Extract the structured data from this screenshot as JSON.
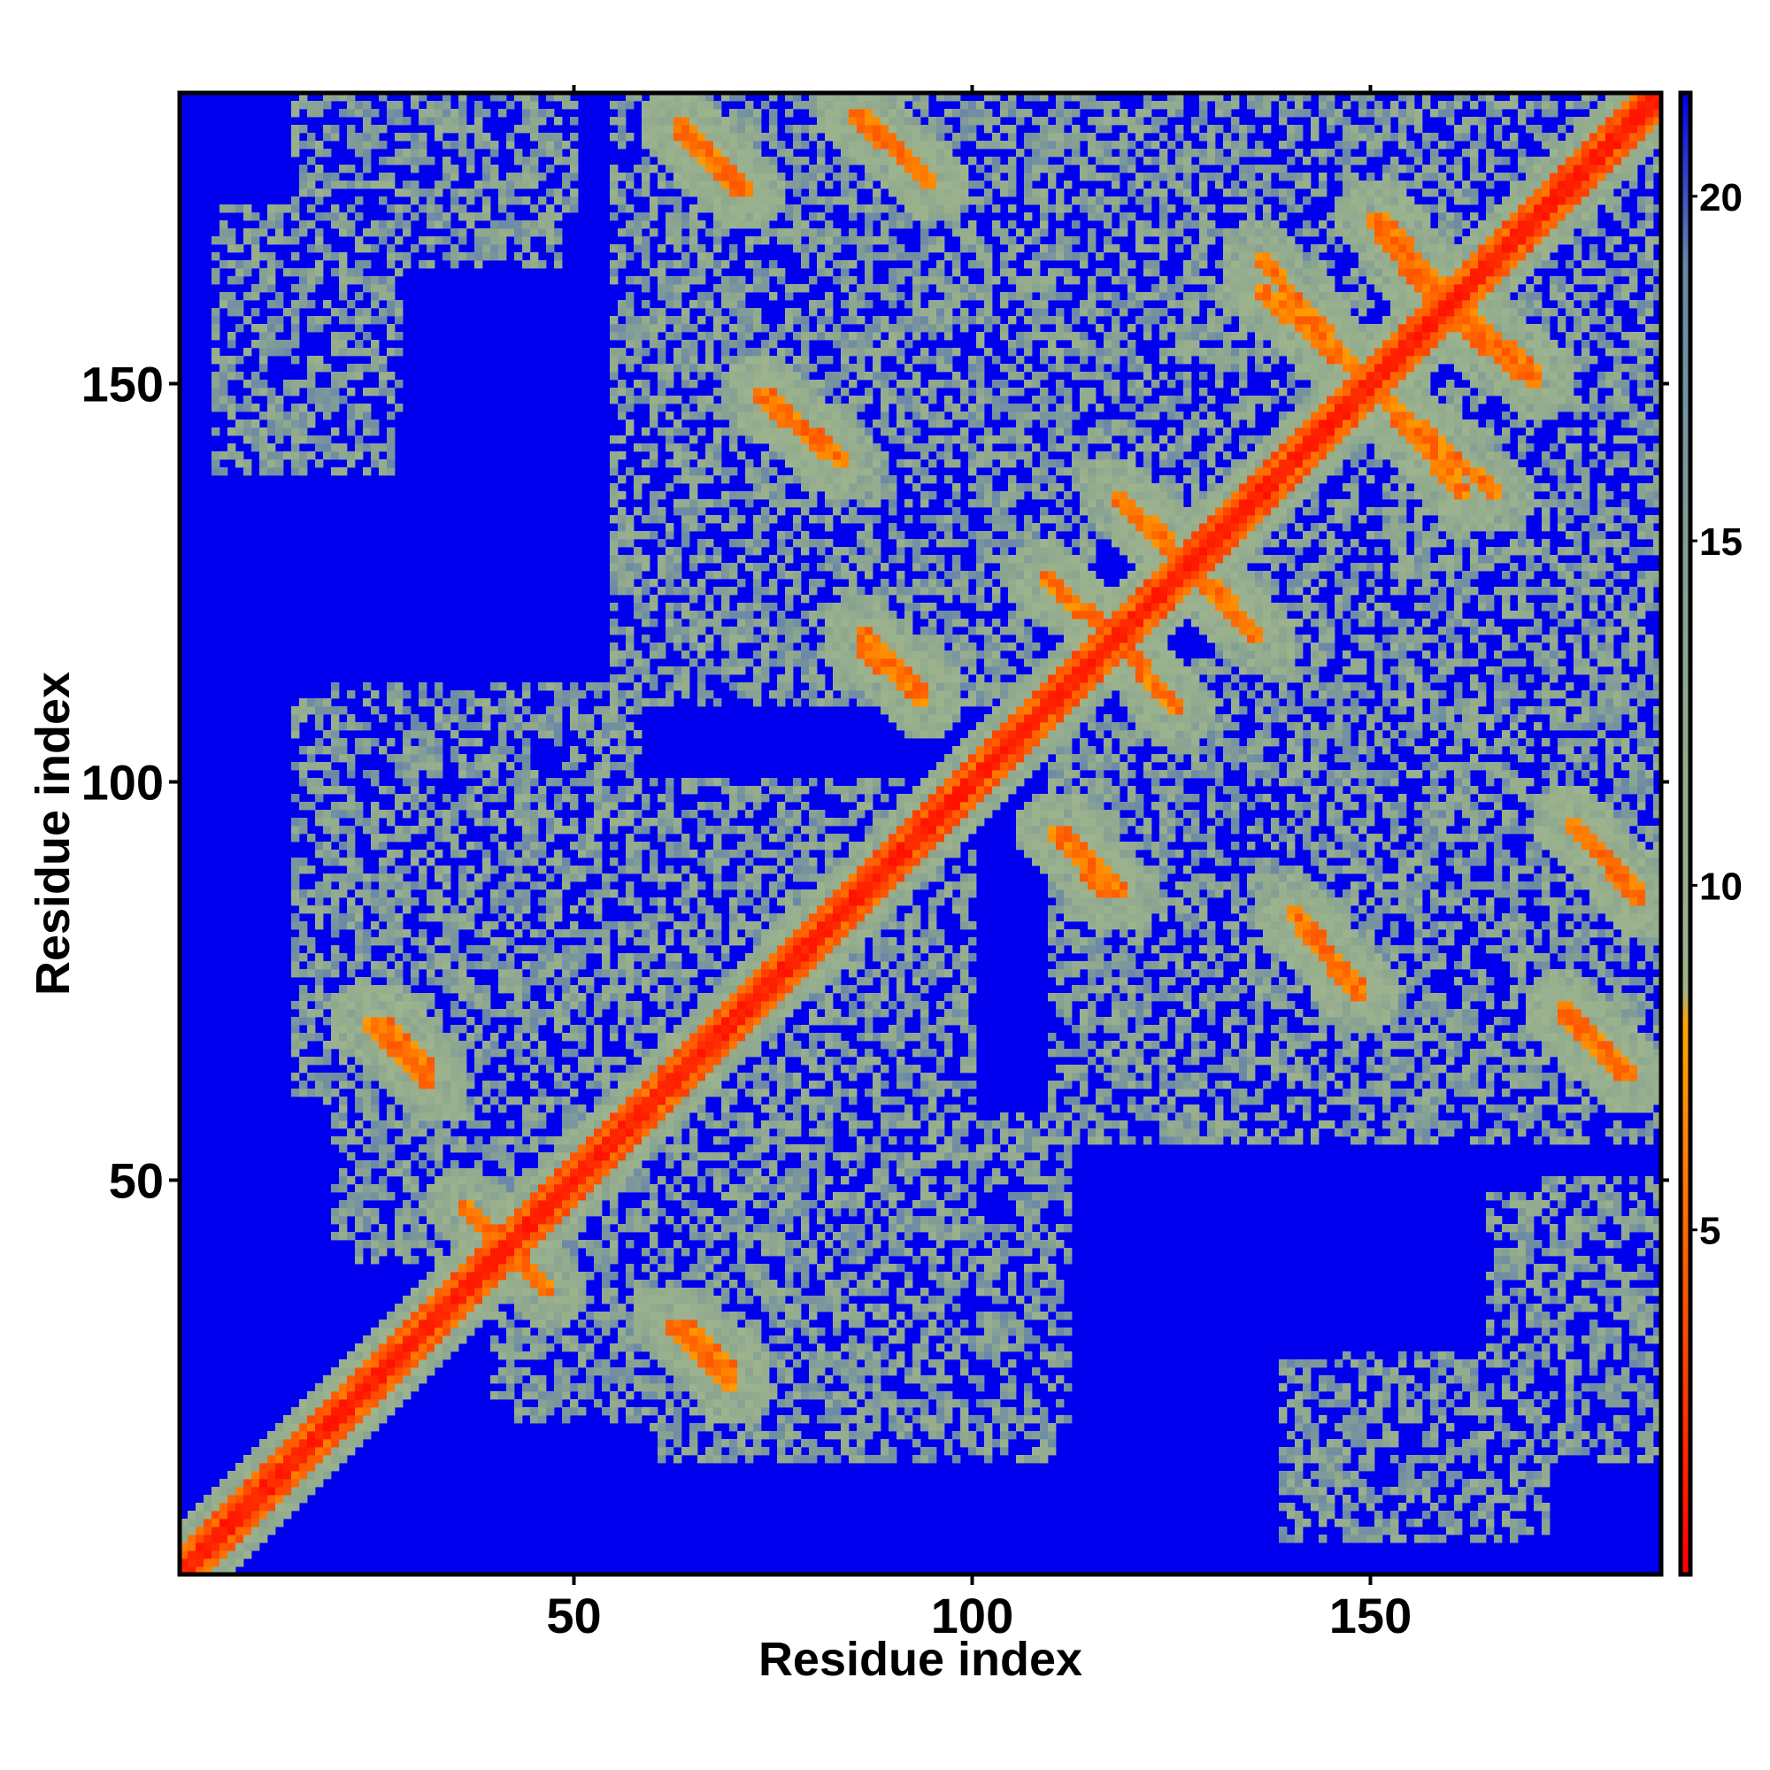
{
  "chart_data": {
    "type": "heatmap",
    "title": "",
    "xlabel": "Residue index",
    "ylabel": "Residue index",
    "n_residues": 186,
    "xlim": [
      1,
      186
    ],
    "ylim": [
      1,
      186
    ],
    "x_ticks": [
      50,
      100,
      150
    ],
    "y_ticks": [
      50,
      100,
      150
    ],
    "colorbar": {
      "ticks": [
        5,
        10,
        15,
        20
      ],
      "range": [
        0,
        21.5
      ],
      "stops": [
        {
          "value": 0,
          "color": "#ff0000"
        },
        {
          "value": 5,
          "color": "#ff6a00"
        },
        {
          "value": 8,
          "color": "#ffa500"
        },
        {
          "value": 8.5,
          "color": "#9fb58e"
        },
        {
          "value": 13,
          "color": "#8fa88e"
        },
        {
          "value": 19,
          "color": "#6a88a8"
        },
        {
          "value": 21.5,
          "color": "#0000ee"
        }
      ]
    },
    "background_value": 21.5,
    "structure": {
      "diagonal_band": {
        "from": 1,
        "to": 186,
        "max_value": 3
      },
      "contact_bands": [
        {
          "x": [
            63,
            71
          ],
          "y": [
            182,
            174
          ],
          "type": "antiparallel"
        },
        {
          "x": [
            86,
            95
          ],
          "y": [
            184,
            175
          ],
          "type": "antiparallel"
        },
        {
          "x": [
            74,
            84
          ],
          "y": [
            149,
            140
          ],
          "type": "antiparallel"
        },
        {
          "x": [
            86,
            94
          ],
          "y": [
            117,
            110
          ],
          "type": "antiparallel"
        },
        {
          "x": [
            111,
            119
          ],
          "y": [
            94,
            86
          ],
          "type": "antiparallel"
        },
        {
          "x": [
            141,
            149
          ],
          "y": [
            82,
            73
          ],
          "type": "antiparallel"
        },
        {
          "x": [
            175,
            184
          ],
          "y": [
            95,
            85
          ],
          "type": "antiparallel"
        },
        {
          "x": [
            174,
            183
          ],
          "y": [
            72,
            63
          ],
          "type": "antiparallel"
        },
        {
          "x": [
            26,
            32
          ],
          "y": [
            70,
            64
          ],
          "type": "antiparallel"
        },
        {
          "x": [
            62,
            70
          ],
          "y": [
            32,
            24
          ],
          "type": "antiparallel"
        },
        {
          "x": [
            36,
            47
          ],
          "y": [
            47,
            36
          ],
          "type": "antiparallel"
        },
        {
          "x": [
            118,
            128
          ],
          "y": [
            136,
            126
          ],
          "type": "antiparallel"
        },
        {
          "x": [
            111,
            119
          ],
          "y": [
            124,
            117
          ],
          "type": "antiparallel"
        },
        {
          "x": [
            119,
            126
          ],
          "y": [
            117,
            109
          ],
          "type": "antiparallel"
        },
        {
          "x": [
            125,
            133
          ],
          "y": [
            129,
            122
          ],
          "type": "antiparallel"
        },
        {
          "x": [
            151,
            159
          ],
          "y": [
            171,
            162
          ],
          "type": "antiparallel"
        },
        {
          "x": [
            160,
            171
          ],
          "y": [
            158,
            150
          ],
          "type": "antiparallel"
        },
        {
          "x": [
            136,
            146
          ],
          "y": [
            162,
            153
          ],
          "type": "antiparallel"
        },
        {
          "x": [
            152,
            166
          ],
          "y": [
            148,
            136
          ],
          "type": "antiparallel"
        }
      ],
      "contact_regions": [
        {
          "x": [
            1,
            190
          ],
          "y": [
            1,
            190
          ],
          "note": "near-diagonal domain"
        },
        {
          "x": [
            6,
            28
          ],
          "y": [
            147,
            172
          ]
        },
        {
          "x": [
            20,
            48
          ],
          "y": [
            165,
            186
          ]
        },
        {
          "x": [
            55,
            100
          ],
          "y": [
            130,
            186
          ]
        },
        {
          "x": [
            105,
            186
          ],
          "y": [
            130,
            186
          ]
        },
        {
          "x": [
            40,
            100
          ],
          "y": [
            20,
            100
          ]
        },
        {
          "x": [
            78,
            112
          ],
          "y": [
            20,
            58
          ]
        },
        {
          "x": [
            15,
            48
          ],
          "y": [
            60,
            110
          ]
        },
        {
          "x": [
            110,
            186
          ],
          "y": [
            55,
            115
          ]
        },
        {
          "x": [
            139,
            169
          ],
          "y": [
            5,
            27
          ]
        },
        {
          "x": [
            172,
            186
          ],
          "y": [
            15,
            50
          ]
        }
      ]
    }
  }
}
